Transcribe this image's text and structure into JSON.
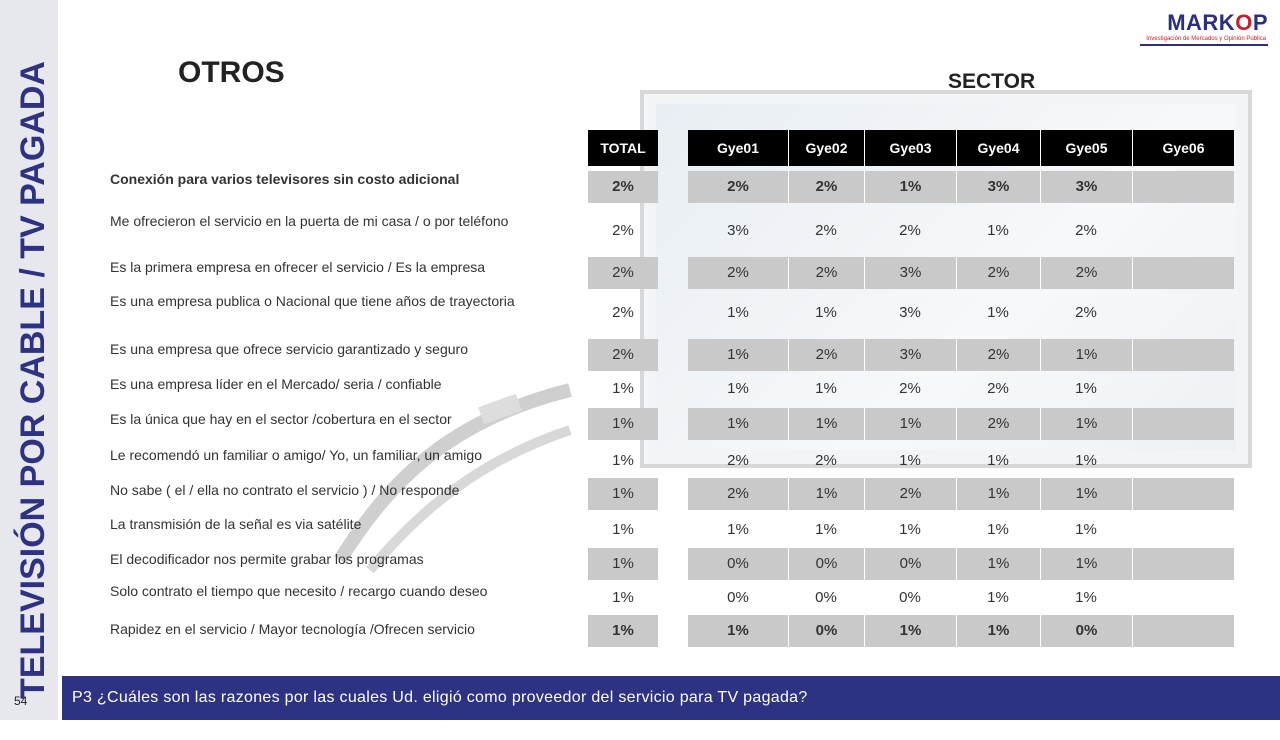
{
  "vertical_title": "TELEVISIÓN POR CABLE / TV PAGADA",
  "page_number": "54",
  "logo": {
    "word_part1": "MARK",
    "word_o": "O",
    "word_part2": "P",
    "tagline": "Investigación de Mercados y Opinión Pública"
  },
  "page_title": "OTROS",
  "sector_title": "SECTOR",
  "total_header": "TOTAL",
  "sector_headers": [
    "Gye01",
    "Gye02",
    "Gye03",
    "Gye04",
    "Gye05",
    "Gye06"
  ],
  "reasons": [
    "Conexión para varios televisores sin costo adicional",
    "Me ofrecieron el servicio en la puerta de mi casa / o por teléfono",
    "Es la primera empresa en ofrecer el servicio / Es la empresa",
    "Es una empresa publica o Nacional  que tiene años de trayectoria",
    "Es una empresa que ofrece servicio garantizado y seguro",
    "Es una empresa  líder en el Mercado/ seria / confiable",
    "Es la única que hay en el sector /cobertura en el sector",
    "Le recomendó un familiar o amigo/ Yo, un familiar, un amigo",
    "No sabe ( el / ella no contrato el servicio  ) / No responde",
    "La transmisión  de la señal es  via satélite",
    "El decodificador nos permite grabar los programas",
    "Solo contrato el tiempo que necesito / recargo cuando deseo",
    "Rapidez en el servicio / Mayor tecnología /Ofrecen servicio"
  ],
  "rows": [
    {
      "total": "2%",
      "values": [
        "2%",
        "2%",
        "1%",
        "3%",
        "3%",
        ""
      ]
    },
    {
      "total": "2%",
      "values": [
        "3%",
        "2%",
        "2%",
        "1%",
        "2%",
        ""
      ]
    },
    {
      "total": "2%",
      "values": [
        "2%",
        "2%",
        "3%",
        "2%",
        "2%",
        ""
      ]
    },
    {
      "total": "2%",
      "values": [
        "1%",
        "1%",
        "3%",
        "1%",
        "2%",
        ""
      ]
    },
    {
      "total": "2%",
      "values": [
        "1%",
        "2%",
        "3%",
        "2%",
        "1%",
        ""
      ]
    },
    {
      "total": "1%",
      "values": [
        "1%",
        "1%",
        "2%",
        "2%",
        "1%",
        ""
      ]
    },
    {
      "total": "1%",
      "values": [
        "1%",
        "1%",
        "1%",
        "2%",
        "1%",
        ""
      ]
    },
    {
      "total": "1%",
      "values": [
        "2%",
        "2%",
        "1%",
        "1%",
        "1%",
        ""
      ]
    },
    {
      "total": "1%",
      "values": [
        "2%",
        "1%",
        "2%",
        "1%",
        "1%",
        ""
      ]
    },
    {
      "total": "1%",
      "values": [
        "1%",
        "1%",
        "1%",
        "1%",
        "1%",
        ""
      ]
    },
    {
      "total": "1%",
      "values": [
        "0%",
        "0%",
        "0%",
        "1%",
        "1%",
        ""
      ]
    },
    {
      "total": "1%",
      "values": [
        "0%",
        "0%",
        "0%",
        "1%",
        "1%",
        ""
      ]
    },
    {
      "total": "1%",
      "values": [
        "1%",
        "0%",
        "1%",
        "1%",
        "0%",
        ""
      ]
    }
  ],
  "footer_question": "P3 ¿Cuáles son las razones por las cuales Ud. eligió como proveedor del servicio para TV pagada?",
  "colors": {
    "brand_blue": "#2d3283",
    "brand_red": "#c8202a",
    "row_shade": "#c9c9c9",
    "header_black": "#000000"
  }
}
